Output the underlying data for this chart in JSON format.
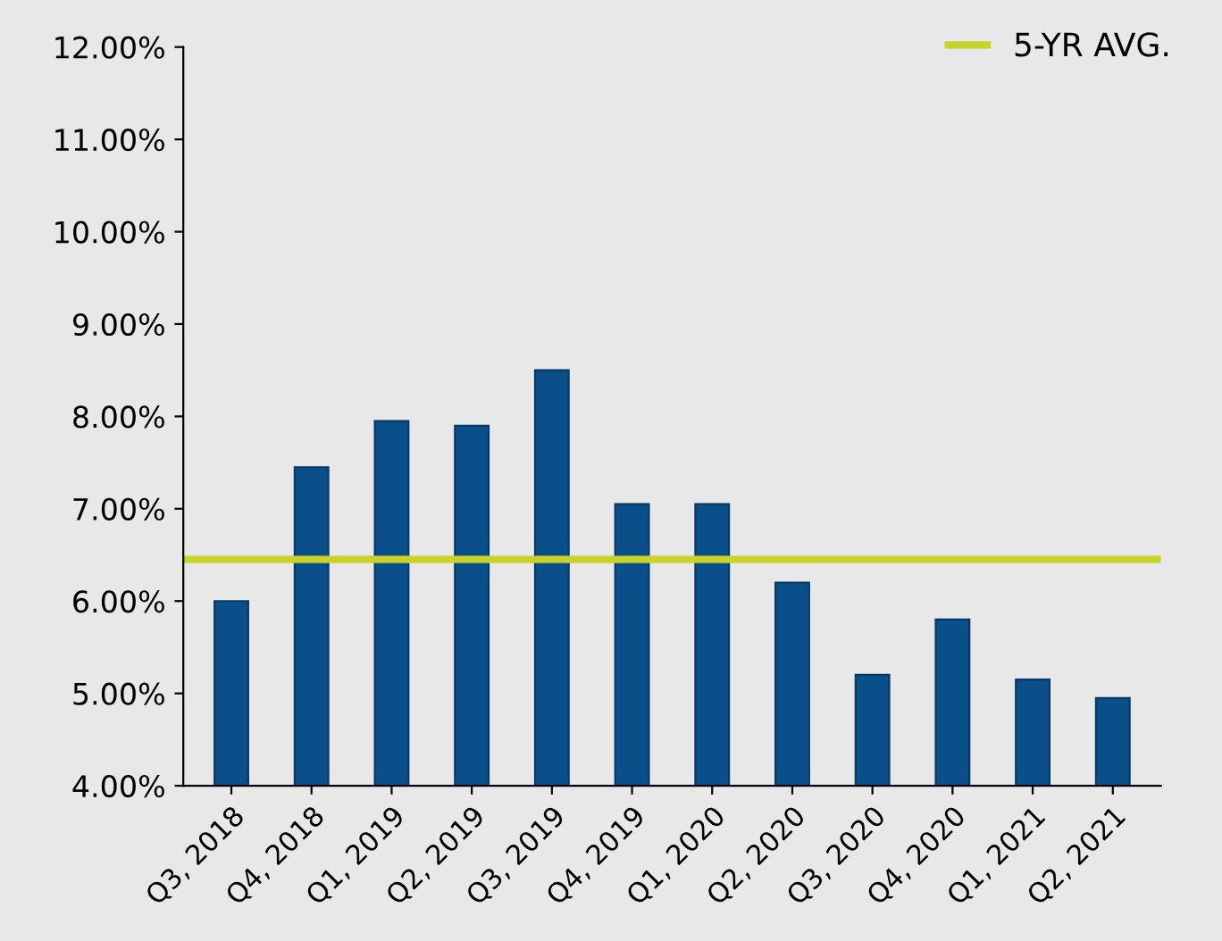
{
  "chart_data": {
    "type": "bar",
    "categories": [
      "Q3, 2018",
      "Q4, 2018",
      "Q1, 2019",
      "Q2, 2019",
      "Q3, 2019",
      "Q4, 2019",
      "Q1, 2020",
      "Q2, 2020",
      "Q3, 2020",
      "Q4, 2020",
      "Q1, 2021",
      "Q2, 2021"
    ],
    "values": [
      6.0,
      7.45,
      7.95,
      7.9,
      8.5,
      7.05,
      7.05,
      6.2,
      5.2,
      5.8,
      5.15,
      4.95
    ],
    "color": "#0b4f8a",
    "ylim": [
      4,
      12
    ],
    "yticks": [
      {
        "value": 4,
        "label": "4.00%"
      },
      {
        "value": 5,
        "label": "5.00%"
      },
      {
        "value": 6,
        "label": "6.00%"
      },
      {
        "value": 7,
        "label": "7.00%"
      },
      {
        "value": 8,
        "label": "8.00%"
      },
      {
        "value": 9,
        "label": "9.00%"
      },
      {
        "value": 10,
        "label": "10.00%"
      },
      {
        "value": 11,
        "label": "11.00%"
      },
      {
        "value": 12,
        "label": "12.00%"
      }
    ],
    "ref_lines": [
      {
        "axis": "y",
        "value": 6.45,
        "label": "5-YR AVG.",
        "color": "#c8d22a"
      }
    ],
    "legend": "top right",
    "grid": false
  }
}
